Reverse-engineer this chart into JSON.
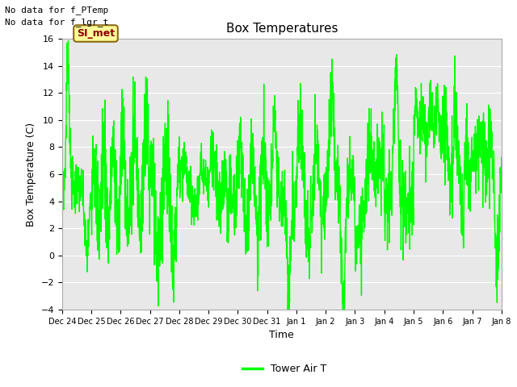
{
  "title": "Box Temperatures",
  "xlabel": "Time",
  "ylabel": "Box Temperature (C)",
  "ylim": [
    -4,
    16
  ],
  "yticks": [
    -4,
    -2,
    0,
    2,
    4,
    6,
    8,
    10,
    12,
    14,
    16
  ],
  "line_color": "#00FF00",
  "line_width": 1.0,
  "fig_bg_color": "#FFFFFF",
  "plot_bg_color": "#E8E8E8",
  "grid_color": "#FFFFFF",
  "text_no_data_1": "No data for f_PTemp",
  "text_no_data_2": "No data for f_lgr_t",
  "legend_label": "Tower Air T",
  "legend_line_color": "#00FF00",
  "si_met_label": "SI_met",
  "si_met_bg": "#FFFF99",
  "si_met_border": "#8B6914",
  "si_met_text_color": "#8B0000",
  "xtick_labels": [
    "Dec 24",
    "Dec 25",
    "Dec 26",
    "Dec 27",
    "Dec 28",
    "Dec 29",
    "Dec 30",
    "Dec 31",
    "Jan 1",
    "Jan 2",
    "Jan 3",
    "Jan 4",
    "Jan 5",
    "Jan 6",
    "Jan 7",
    "Jan 8"
  ],
  "title_fontsize": 11,
  "label_fontsize": 9,
  "tick_fontsize": 8,
  "nodata_fontsize": 8,
  "legend_fontsize": 9,
  "simet_fontsize": 9
}
